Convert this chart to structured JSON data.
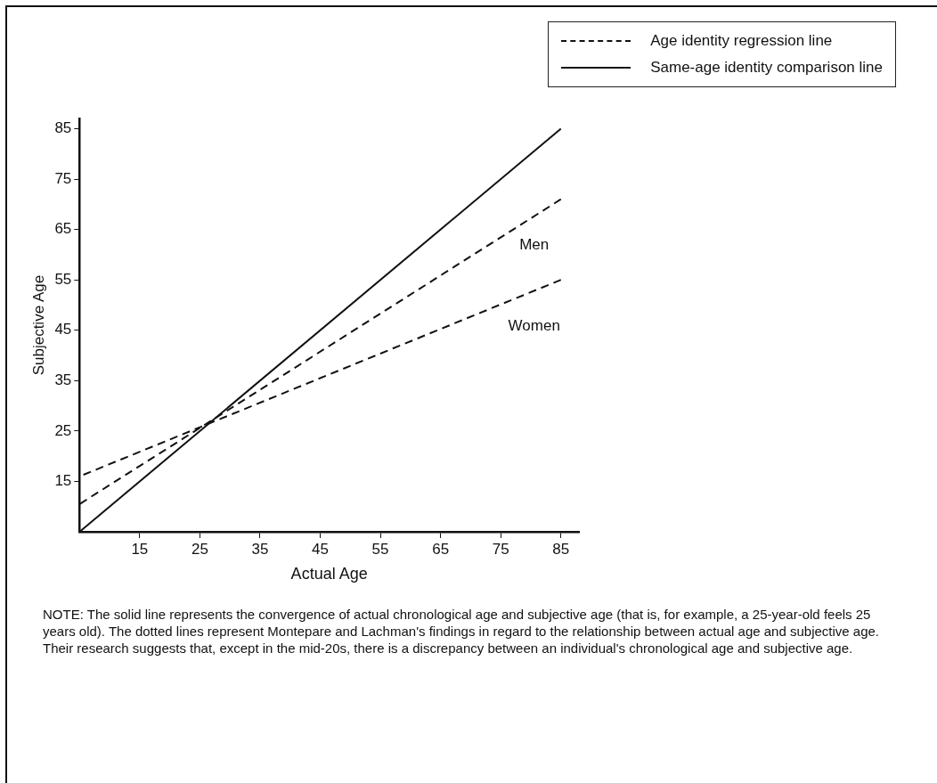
{
  "chart_data": {
    "type": "line",
    "xlabel": "Actual Age",
    "ylabel": "Subjective Age",
    "x": [
      5,
      85
    ],
    "xlim": [
      5,
      88
    ],
    "ylim": [
      5,
      87
    ],
    "xticks": [
      15,
      25,
      35,
      45,
      55,
      65,
      75,
      85
    ],
    "yticks": [
      15,
      25,
      35,
      45,
      55,
      65,
      75,
      85
    ],
    "grid": false,
    "marker": "none",
    "legend": "top right",
    "series": [
      {
        "name": "Same-age identity comparison line",
        "color": "#111111",
        "line_style": "solid",
        "values": [
          5,
          85
        ]
      },
      {
        "name": "Men",
        "color": "#111111",
        "line_style": "dashed",
        "values": [
          10.5,
          71
        ]
      },
      {
        "name": "Women",
        "color": "#111111",
        "line_style": "dashed",
        "values": [
          16,
          55
        ]
      }
    ],
    "annotations": [
      "Age identity regression line",
      "NOTE: The solid line represents the convergence of actual chronological age and subjective age (that is, for example, a 25-year-old feels 25 years old). The dotted lines represent Montepare and Lachman's findings in regard to the relationship between actual age and subjective age. Their research suggests that, except in the mid-20s, there is a discrepancy between an individual's chronological age and subjective age."
    ]
  }
}
